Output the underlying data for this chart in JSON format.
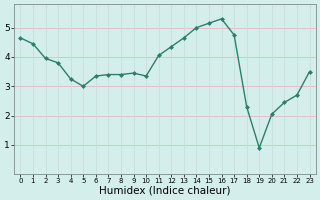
{
  "x": [
    0,
    1,
    2,
    3,
    4,
    5,
    6,
    7,
    8,
    9,
    10,
    11,
    12,
    13,
    14,
    15,
    16,
    17,
    18,
    19,
    20,
    21,
    22,
    23
  ],
  "y": [
    4.65,
    4.45,
    3.95,
    3.8,
    3.25,
    3.0,
    3.35,
    3.4,
    3.4,
    3.45,
    3.35,
    4.05,
    4.35,
    4.65,
    5.0,
    5.15,
    5.3,
    4.75,
    2.3,
    0.9,
    2.05,
    2.45,
    2.7,
    3.5
  ],
  "line_color": "#2e7d6e",
  "marker": "D",
  "markersize": 2.0,
  "linewidth": 1.0,
  "xlabel": "Humidex (Indice chaleur)",
  "xlim": [
    -0.5,
    23.5
  ],
  "ylim": [
    0,
    5.8
  ],
  "yticks": [
    1,
    2,
    3,
    4,
    5
  ],
  "xticks": [
    0,
    1,
    2,
    3,
    4,
    5,
    6,
    7,
    8,
    9,
    10,
    11,
    12,
    13,
    14,
    15,
    16,
    17,
    18,
    19,
    20,
    21,
    22,
    23
  ],
  "bg_color": "#d4eeeb",
  "grid_color_h": "#e8b8b8",
  "grid_color_v": "#c8deda",
  "xlabel_fontsize": 7.5,
  "xtick_fontsize": 5.0,
  "ytick_fontsize": 6.5
}
